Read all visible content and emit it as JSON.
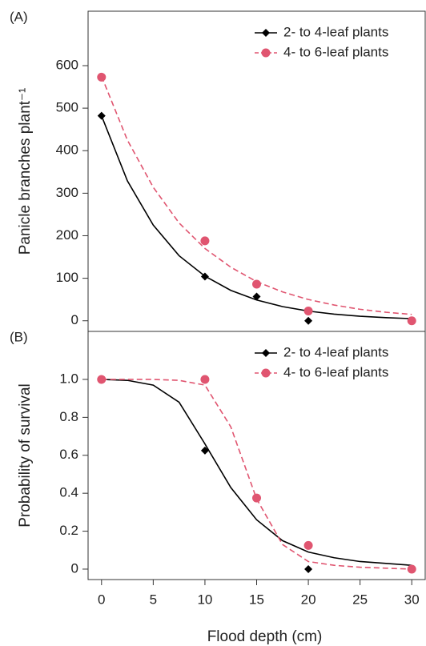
{
  "chart_data": [
    {
      "type": "line",
      "panel_label": "(A)",
      "y_label": "Panicle branches plant⁻¹",
      "xlim": [
        -1.3,
        31.3
      ],
      "ylim": [
        -25,
        728
      ],
      "yticks": [
        0,
        100,
        200,
        300,
        400,
        500,
        600
      ],
      "legend": "upper right",
      "series": [
        {
          "name": "2- to 4-leaf plants",
          "color": "#000000",
          "marker": "diamond",
          "dashed": false,
          "x": [
            0,
            10,
            15,
            20,
            30
          ],
          "values": [
            482,
            104,
            57,
            0,
            0
          ],
          "fit_x": [
            0,
            2.5,
            5,
            7.5,
            10,
            12.5,
            15,
            17.5,
            20,
            22.5,
            25,
            27.5,
            30
          ],
          "fit_values": [
            482,
            329,
            225,
            153,
            105,
            71.5,
            48.9,
            33.4,
            22.8,
            15.6,
            10.6,
            7.3,
            5
          ]
        },
        {
          "name": "4- to 6-leaf plants",
          "color": "#e05570",
          "marker": "circle",
          "dashed": true,
          "x": [
            0,
            10,
            15,
            20,
            30
          ],
          "values": [
            573,
            188,
            86,
            23,
            0
          ],
          "fit_x": [
            0,
            2.5,
            5,
            7.5,
            10,
            12.5,
            15,
            17.5,
            20,
            22.5,
            25,
            27.5,
            30
          ],
          "fit_values": [
            575,
            425,
            314,
            230,
            170,
            126,
            92,
            68,
            50,
            37,
            27,
            20,
            15
          ]
        }
      ]
    },
    {
      "type": "line",
      "panel_label": "(B)",
      "y_label": "Probability of survival",
      "x_label": "Flood depth (cm)",
      "xlim": [
        -1.3,
        31.3
      ],
      "ylim": [
        -0.055,
        1.253
      ],
      "xticks": [
        0,
        5,
        10,
        15,
        20,
        25,
        30
      ],
      "yticks": [
        0,
        0.2,
        0.4,
        0.6,
        0.8,
        {
          "value": 1,
          "label": "1.0"
        }
      ],
      "legend": "upper right",
      "series": [
        {
          "name": "2- to 4-leaf plants",
          "color": "#000000",
          "marker": "diamond",
          "dashed": false,
          "x": [
            0,
            10,
            20
          ],
          "values": [
            1,
            0.625,
            0
          ],
          "fit_x": [
            0,
            2.5,
            5,
            7.5,
            10,
            12.5,
            15,
            17.5,
            20,
            22.5,
            25,
            27.5,
            30
          ],
          "fit_values": [
            1,
            0.995,
            0.97,
            0.88,
            0.66,
            0.43,
            0.26,
            0.15,
            0.09,
            0.06,
            0.04,
            0.03,
            0.02
          ]
        },
        {
          "name": "4- to 6-leaf plants",
          "color": "#e05570",
          "marker": "circle",
          "dashed": true,
          "x": [
            0,
            10,
            15,
            20,
            30
          ],
          "values": [
            1,
            1,
            0.375,
            0.125,
            0
          ],
          "fit_x": [
            0,
            2.5,
            5,
            7.5,
            10,
            12.5,
            15,
            17.5,
            20,
            22.5,
            25,
            27.5,
            30
          ],
          "fit_values": [
            1,
            1,
            1,
            0.995,
            0.97,
            0.75,
            0.37,
            0.13,
            0.04,
            0.02,
            0.01,
            0.005,
            0
          ]
        }
      ]
    }
  ]
}
